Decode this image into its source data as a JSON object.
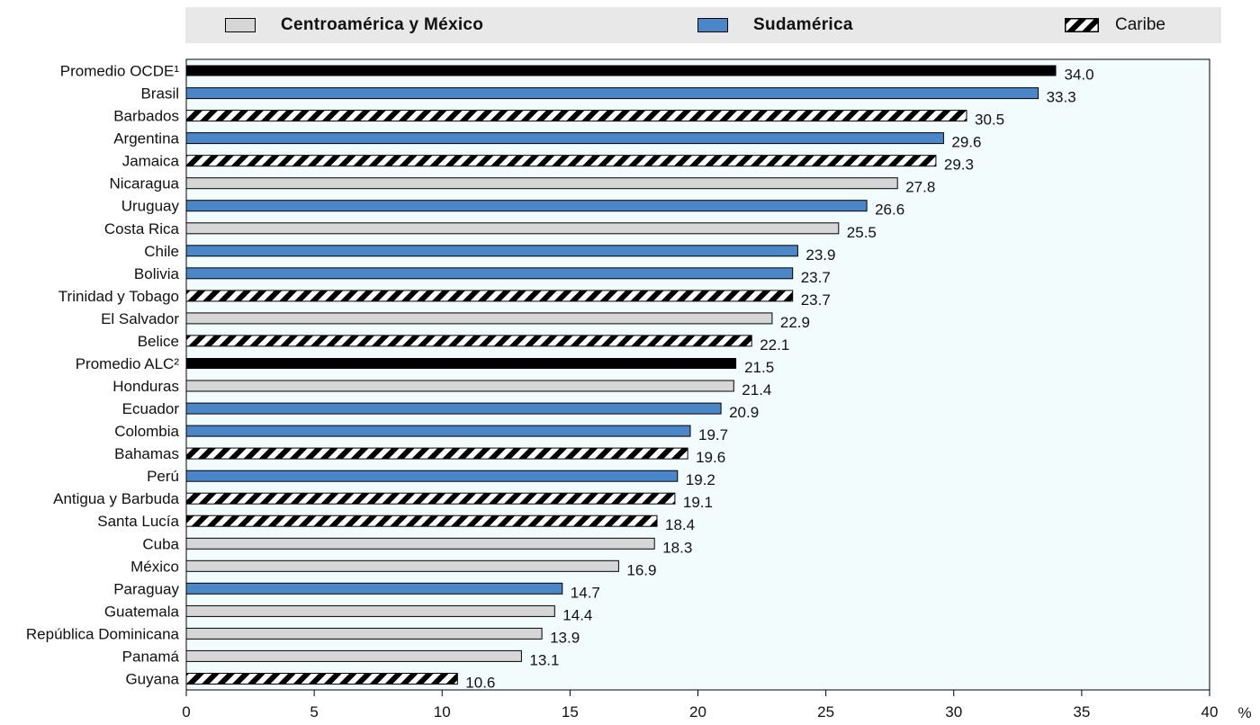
{
  "legend": {
    "items": [
      {
        "label": "Centroamérica y México",
        "group": "central",
        "bold": true
      },
      {
        "label": "Sudamérica",
        "group": "south",
        "bold": true
      },
      {
        "label": "Caribe",
        "group": "caribbean",
        "bold": false
      }
    ]
  },
  "colors": {
    "central": "#d6d6d6",
    "south": "#4a86c8",
    "caribbean_pattern_fg": "#000000",
    "caribbean_pattern_bg": "#ffffff",
    "average": "#000000",
    "plot_background": "#f3fcfd",
    "legend_background": "#e8e8e8"
  },
  "chart_data": {
    "type": "bar",
    "orientation": "horizontal",
    "title": "",
    "xlabel": "%",
    "ylabel": "",
    "xlim": [
      0,
      40
    ],
    "xticks": [
      0,
      5,
      10,
      15,
      20,
      25,
      30,
      35,
      40
    ],
    "grid": false,
    "legend_position": "top",
    "categories": [
      "Promedio OCDE¹",
      "Brasil",
      "Barbados",
      "Argentina",
      "Jamaica",
      "Nicaragua",
      "Uruguay",
      "Costa Rica",
      "Chile",
      "Bolivia",
      "Trinidad y Tobago",
      "El Salvador",
      "Belice",
      "Promedio ALC²",
      "Honduras",
      "Ecuador",
      "Colombia",
      "Bahamas",
      "Perú",
      "Antigua y Barbuda",
      "Santa Lucía",
      "Cuba",
      "México",
      "Paraguay",
      "Guatemala",
      "República Dominicana",
      "Panamá",
      "Guyana"
    ],
    "values": [
      34.0,
      33.3,
      30.5,
      29.6,
      29.3,
      27.8,
      26.6,
      25.5,
      23.9,
      23.7,
      23.7,
      22.9,
      22.1,
      21.5,
      21.4,
      20.9,
      19.7,
      19.6,
      19.2,
      19.1,
      18.4,
      18.3,
      16.9,
      14.7,
      14.4,
      13.9,
      13.1,
      10.6
    ],
    "value_labels": [
      "34.0",
      "33.3",
      "30.5",
      "29.6",
      "29.3",
      "27.8",
      "26.6",
      "25.5",
      "23.9",
      "23.7",
      "23.7",
      "22.9",
      "22.1",
      "21.5",
      "21.4",
      "20.9",
      "19.7",
      "19.6",
      "19.2",
      "19.1",
      "18.4",
      "18.3",
      "16.9",
      "14.7",
      "14.4",
      "13.9",
      "13.1",
      "10.6"
    ],
    "groups": [
      "average",
      "south",
      "caribbean",
      "south",
      "caribbean",
      "central",
      "south",
      "central",
      "south",
      "south",
      "caribbean",
      "central",
      "caribbean",
      "average",
      "central",
      "south",
      "south",
      "caribbean",
      "south",
      "caribbean",
      "caribbean",
      "central",
      "central",
      "south",
      "central",
      "central",
      "central",
      "caribbean"
    ]
  }
}
